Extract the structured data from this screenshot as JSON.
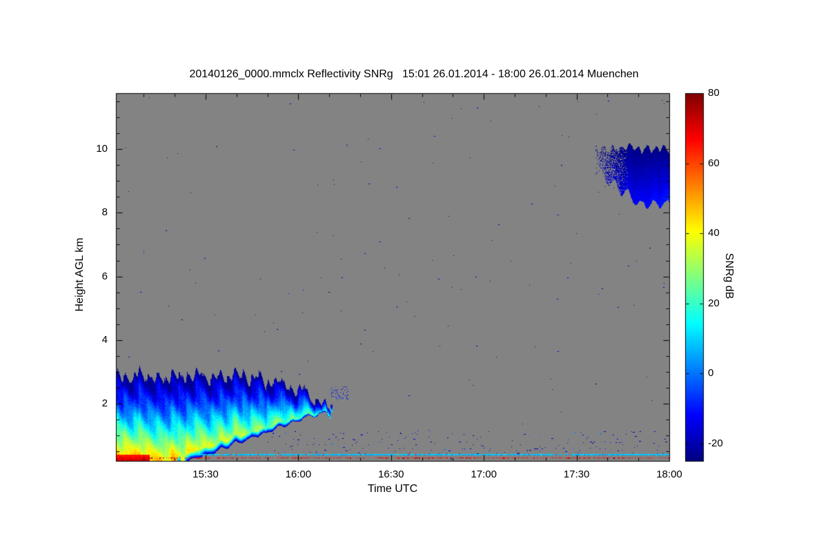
{
  "page": {
    "background_color": "#ffffff"
  },
  "chart_data": {
    "type": "heatmap",
    "title": "20140126_0000.mmclx Reflectivity SNRg   15:01 26.01.2014 - 18:00 26.01.2014 Muenchen",
    "instrument_file": "20140126_0000.mmclx",
    "quantity": "Reflectivity SNRg",
    "time_start_label": "15:01 26.01.2014",
    "time_end_label": "18:00 26.01.2014",
    "site": "Muenchen",
    "xlabel": "Time UTC",
    "ylabel": "Height AGL km",
    "grid": false,
    "plot_background_color": "#838383",
    "x_range": {
      "start_minutes": 901,
      "end_minutes": 1080,
      "start_label": "15:01",
      "end_label": "18:00"
    },
    "y_range_km": [
      0.2,
      11.76
    ],
    "x_minor_step_minutes": 10,
    "y_minor_step_km": 0.5,
    "x_ticks": [
      {
        "label": "15:30",
        "minutes": 930
      },
      {
        "label": "16:00",
        "minutes": 960
      },
      {
        "label": "16:30",
        "minutes": 990
      },
      {
        "label": "17:00",
        "minutes": 1020
      },
      {
        "label": "17:30",
        "minutes": 1050
      },
      {
        "label": "18:00",
        "minutes": 1080
      }
    ],
    "y_ticks": [
      {
        "label": "2",
        "km": 2
      },
      {
        "label": "4",
        "km": 4
      },
      {
        "label": "6",
        "km": 6
      },
      {
        "label": "8",
        "km": 8
      },
      {
        "label": "10",
        "km": 10
      }
    ],
    "colorbar": {
      "label": "SNRg dB",
      "colormap": "jet",
      "range_db": [
        -25,
        80
      ],
      "ticks": [
        {
          "label": "80",
          "value": 80
        },
        {
          "label": "60",
          "value": 60
        },
        {
          "label": "40",
          "value": 40
        },
        {
          "label": "20",
          "value": 20
        },
        {
          "label": "0",
          "value": 0
        },
        {
          "label": "-20",
          "value": -20
        }
      ]
    },
    "features": [
      {
        "name": "boundary-layer-cloud",
        "description": "Low-level cloud/precipitation from 15:01 to about 16:10, surface to ~2.9 km; SNR up to ~60 dB (red/orange) near the ground at the start, fading through yellow/green/cyan with height and time; cloud base lifts with time; dark blue fringe at edges",
        "render": {
          "t_start": 901,
          "t_end": 971,
          "base_rise_start": 919,
          "base_slope_km_per_min": 0.036,
          "top_km": 2.85,
          "top_decline_start": 946,
          "top_decline_slope_km_per_min": 0.032,
          "v_peak_start_db": 62,
          "v_peak_end_db": 24,
          "v_edge_db": -22
        }
      },
      {
        "name": "cirrus-cloud",
        "description": "High-level cloud from ~17:38 to 18:00 between ~8.3 and ~10.1 km, SNR about -25 to -8 dB (dark blue to blue), sparse ragged left edge",
        "render": {
          "t_start": 1056,
          "t_end": 1080,
          "top_km": 10.05,
          "base_start_km": 9.35,
          "base_slope_km_per_min": 0.075,
          "base_min_km": 8.3,
          "v_min_db": -24,
          "v_max_db": -8
        }
      },
      {
        "name": "surface-echo-line",
        "description": "Thin cyan near-surface echo line at ~0.4 km running to 18:00",
        "render": {
          "t_start": 927,
          "t_end": 1080,
          "h_km": 0.42,
          "v_db": 10
        }
      },
      {
        "name": "ground-clutter-bar",
        "description": "Bright red near-surface clutter bar 15:01-15:12",
        "render": {
          "t_start": 901,
          "t_end": 911.5,
          "h_bottom_km": 0.2,
          "h_top_km": 0.4,
          "v_db": 64
        }
      },
      {
        "name": "lowest-gate-dashed-line",
        "description": "Dashed dark-red lowest-gate line at ~0.3 km",
        "render": {
          "t_start": 912,
          "t_end": 1080,
          "h_km": 0.3,
          "v_db": 62,
          "probability": 0.5
        }
      },
      {
        "name": "noise-speckles",
        "description": "Isolated dark-blue noise pixels scattered over the whole time-height plane",
        "render": {
          "count": 150,
          "v_db": -20
        }
      },
      {
        "name": "low-level-speckle-band",
        "description": "Sparse blue speckles and short dashes between ~0.4 and ~1.1 km after ~15:50",
        "render": {
          "t_start": 950,
          "t_end": 1080,
          "h_min_km": 0.42,
          "h_max_km": 1.15,
          "count": 190,
          "v_db": -18
        }
      },
      {
        "name": "cloud-edge-remnant",
        "description": "Small detached cloud fragment near 16:12 at ~2.3 km",
        "render": {
          "t_start": 970,
          "t_end": 976,
          "h_min_km": 2.1,
          "h_max_km": 2.55,
          "count": 60,
          "v_db": -12
        }
      }
    ]
  }
}
